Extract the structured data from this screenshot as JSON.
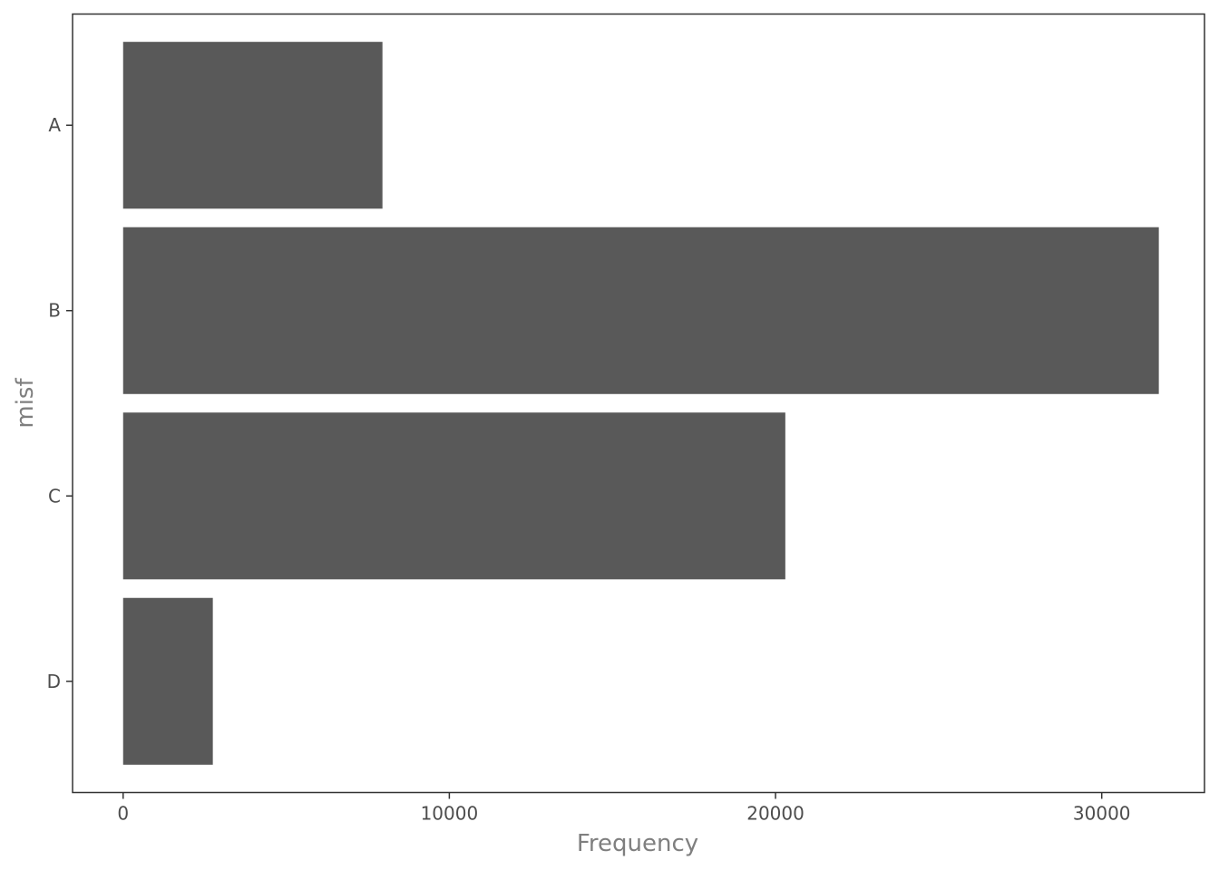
{
  "chart_data": {
    "type": "bar",
    "orientation": "horizontal",
    "categories": [
      "A",
      "B",
      "C",
      "D"
    ],
    "values": [
      7950,
      31750,
      20300,
      2750
    ],
    "xlabel": "Frequency",
    "ylabel": "misf",
    "xlim": [
      -1550,
      33150
    ],
    "x_ticks": [
      "0",
      "10000",
      "20000",
      "30000"
    ],
    "grid": false,
    "legend": "none",
    "colors": {
      "bar": "#595959",
      "panel_border": "#333333",
      "tick": "#333333"
    }
  }
}
